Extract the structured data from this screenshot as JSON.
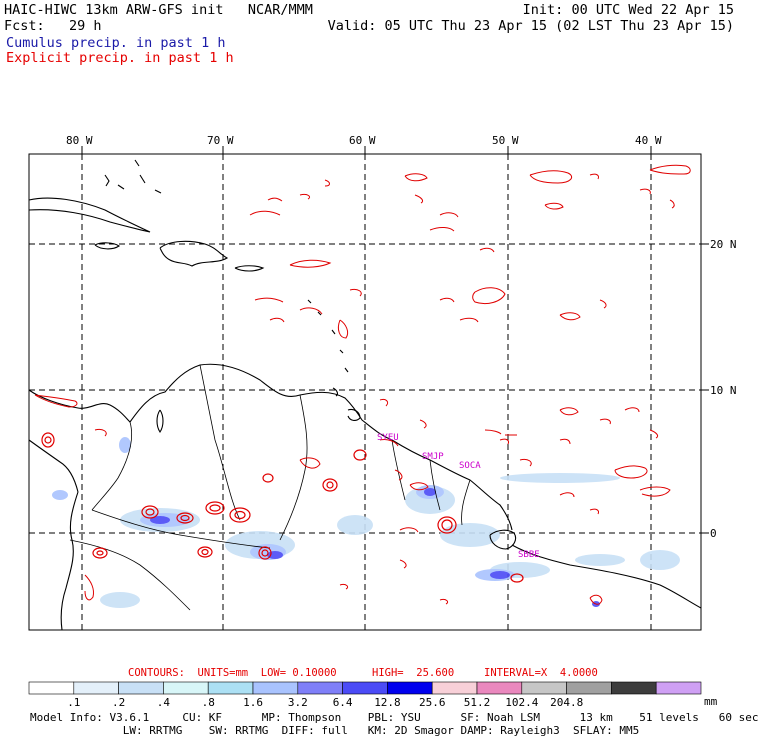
{
  "header": {
    "left1": "HAIC-HIWC 13km ARW-GFS init   NCAR/MMM",
    "left2": "Fcst:   29 h",
    "right1": "Init: 00 UTC Wed 22 Apr 15",
    "right2": "Valid: 05 UTC Thu 23 Apr 15 (02 LST Thu 23 Apr 15)",
    "cumulus": "Cumulus precip. in past 1 h",
    "explicit": "Explicit precip. in past 1 h"
  },
  "map": {
    "lon_labels": [
      "80 W",
      "70 W",
      "60 W",
      "50 W",
      "40 W"
    ],
    "lat_labels": [
      "20 N",
      "10 N",
      "0"
    ],
    "stations": [
      "SYEU",
      "SMJP",
      "SOCA",
      "SBBE"
    ],
    "colors": {
      "coast": "#000000",
      "explicit": "#e00000",
      "station": "#cc00cc",
      "grid": "#000000"
    }
  },
  "contour_info": {
    "contours": "CONTOURS:  UNITS=mm  LOW= 0.10000",
    "high": "HIGH=  25.600",
    "interval": "INTERVAL=X  4.0000"
  },
  "legend": {
    "unit": "mm",
    "ticks": [
      ".1",
      ".2",
      ".4",
      ".8",
      "1.6",
      "3.2",
      "6.4",
      "12.8",
      "25.6",
      "51.2",
      "102.4",
      "204.8"
    ],
    "colors": [
      "#ffffff",
      "#e4f0fa",
      "#c8e0f6",
      "#d8f6f8",
      "#ace0f4",
      "#a9c3fe",
      "#7f7ff8",
      "#4b4bf6",
      "#0000ee",
      "#f8d0d8",
      "#ea88be",
      "#c6c6c6",
      "#a0a0a0",
      "#3c3c3c",
      "#cfa0f4"
    ]
  },
  "footer": {
    "line1": "Model Info: V3.6.1     CU: KF      MP: Thompson    PBL: YSU      SF: Noah LSM      13 km    51 levels   60 sec",
    "line2": "              LW: RRTMG    SW: RRTMG  DIFF: full   KM: 2D Smagor DAMP: Rayleigh3  SFLAY: MM5"
  }
}
